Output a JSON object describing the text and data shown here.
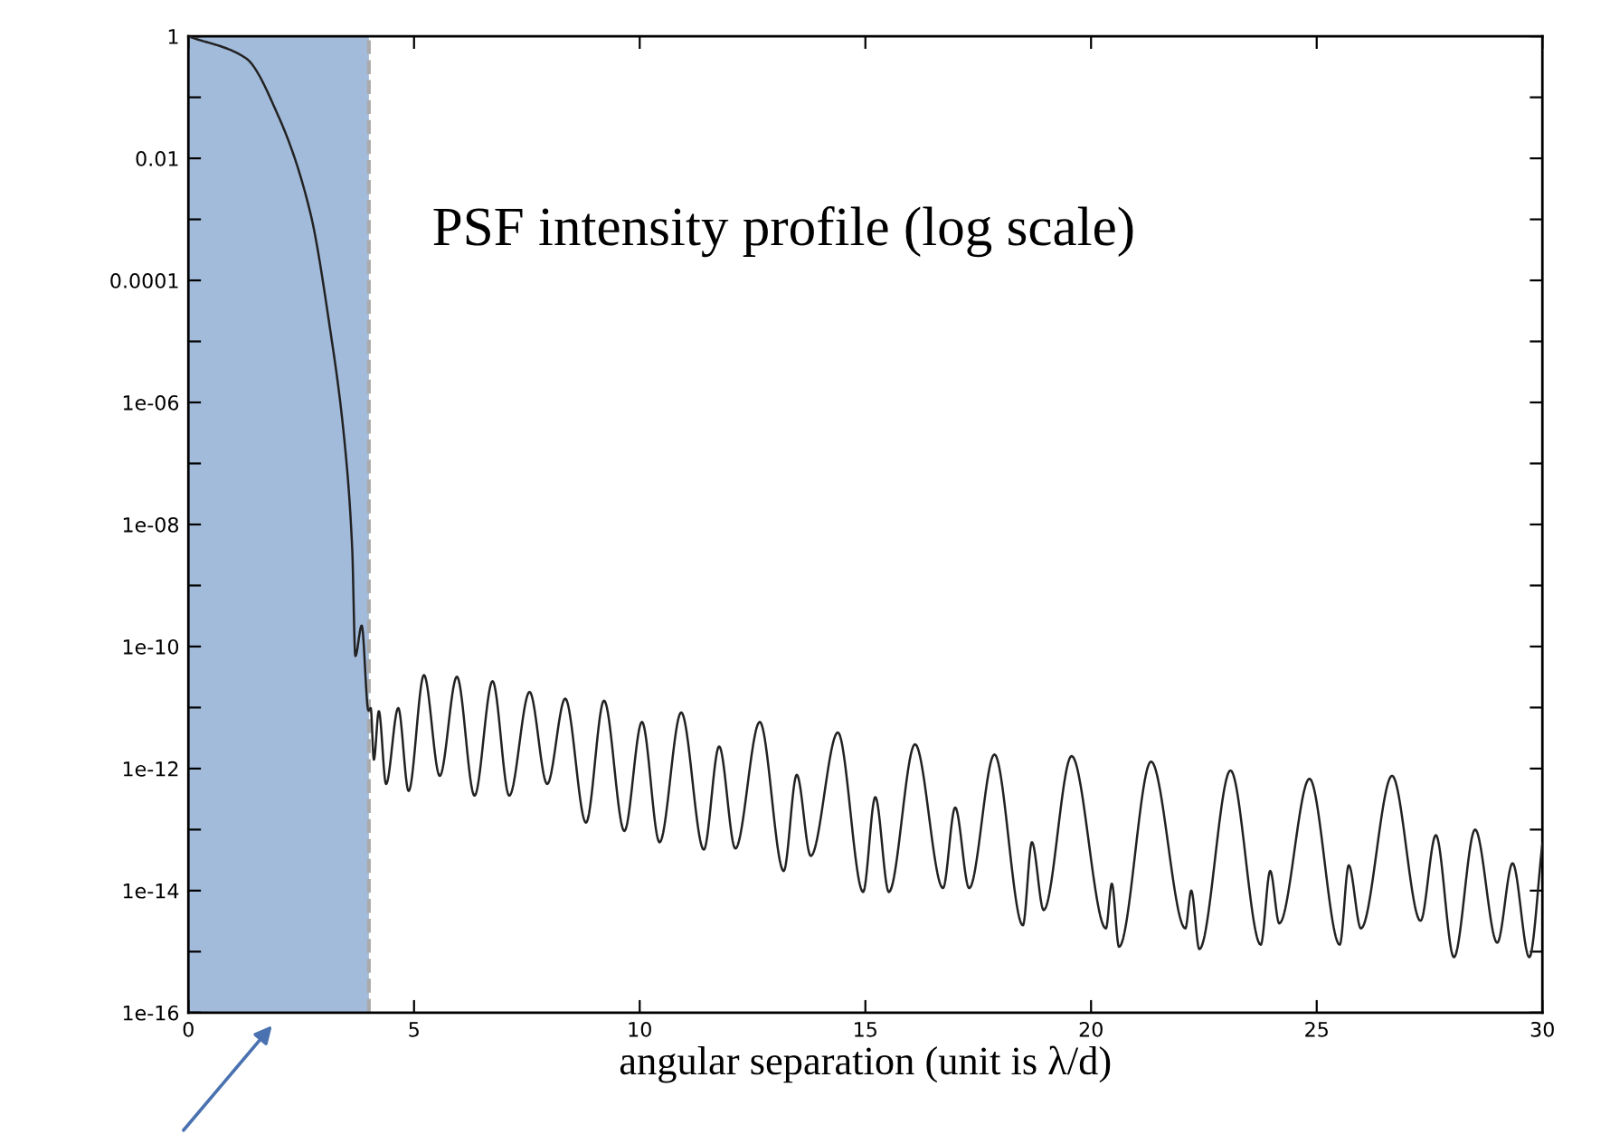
{
  "chart_data": {
    "type": "line",
    "title": "PSF intensity profile (log scale)",
    "xlabel": "angular separation (unit is λ/d)",
    "log": "y",
    "grid": false,
    "legend": false,
    "marker": "none",
    "line_style": "solid",
    "xlim": [
      0,
      30
    ],
    "xticks": [
      0,
      5,
      10,
      15,
      20,
      25,
      30
    ],
    "ylim": [
      1e-16,
      1
    ],
    "yticks": [
      {
        "value": 1,
        "label": "1"
      },
      {
        "value": 0.1,
        "label": null
      },
      {
        "value": 0.01,
        "label": "0.01"
      },
      {
        "value": 0.001,
        "label": null
      },
      {
        "value": 0.0001,
        "label": "0.0001"
      },
      {
        "value": 1e-05,
        "label": null
      },
      {
        "value": 1e-06,
        "label": "1e-06"
      },
      {
        "value": 1e-07,
        "label": null
      },
      {
        "value": 1e-08,
        "label": "1e-08"
      },
      {
        "value": 1e-09,
        "label": null
      },
      {
        "value": 1e-10,
        "label": "1e-10"
      },
      {
        "value": 1e-11,
        "label": null
      },
      {
        "value": 1e-12,
        "label": "1e-12"
      },
      {
        "value": 1e-13,
        "label": null
      },
      {
        "value": 1e-14,
        "label": "1e-14"
      },
      {
        "value": 1e-15,
        "label": null
      },
      {
        "value": 1e-16,
        "label": "1e-16"
      }
    ],
    "bands": [
      {
        "axis": "x",
        "from": 0,
        "to": 4,
        "color": "#a3bbdb"
      }
    ],
    "ref_lines": [
      {
        "axis": "x",
        "value": 4,
        "color": "#aaaaaa",
        "line_style": "dashed"
      }
    ],
    "series": [
      {
        "color": "#222222",
        "x": [
          0,
          1.27,
          1.99,
          2.7,
          3.12,
          3.48,
          3.63,
          3.7,
          3.84,
          3.99,
          4.04,
          4.11,
          4.22,
          4.38,
          4.65,
          4.88,
          5.22,
          5.57,
          5.95,
          6.34,
          6.74,
          7.11,
          7.56,
          7.95,
          8.35,
          8.81,
          9.21,
          9.66,
          10.05,
          10.44,
          10.92,
          11.42,
          11.76,
          12.12,
          12.66,
          13.19,
          13.48,
          13.79,
          14.39,
          14.95,
          15.22,
          15.52,
          16.1,
          16.72,
          16.99,
          17.3,
          17.86,
          18.49,
          18.69,
          18.95,
          19.57,
          20.33,
          20.46,
          20.62,
          21.33,
          22.09,
          22.22,
          22.4,
          23.09,
          23.76,
          23.97,
          24.17,
          24.84,
          25.51,
          25.71,
          25.98,
          26.67,
          27.3,
          27.64,
          28.04,
          28.51,
          29.0,
          29.34,
          29.71,
          30
        ],
        "values": [
          1,
          0.44,
          0.05,
          0.0013,
          2e-05,
          1.6e-07,
          4e-09,
          7e-11,
          2.2e-10,
          8.9e-12,
          9.8e-12,
          1.4e-12,
          8.7e-12,
          5.6e-13,
          9.8e-12,
          4.3e-13,
          3.4e-11,
          7.6e-13,
          3.2e-11,
          3.6e-13,
          2.7e-11,
          3.6e-13,
          1.8e-11,
          5.6e-13,
          1.4e-11,
          1.3e-13,
          1.3e-11,
          9.5e-14,
          5.8e-12,
          6.2e-14,
          8.3e-12,
          4.7e-14,
          2.3e-12,
          4.9e-14,
          5.8e-12,
          2.1e-14,
          7.9e-13,
          3.7e-14,
          3.9e-12,
          9.5e-15,
          3.4e-13,
          9.5e-15,
          2.5e-12,
          1.1e-14,
          2.3e-13,
          1.1e-14,
          1.7e-12,
          2.7e-15,
          6.2e-14,
          4.8e-15,
          1.6e-12,
          2.4e-15,
          1.3e-14,
          1.2e-15,
          1.3e-12,
          2.4e-15,
          1e-14,
          1.1e-15,
          9.3e-13,
          1.3e-15,
          2.1e-14,
          2.9e-15,
          6.8e-13,
          1.3e-15,
          2.6e-14,
          2.4e-15,
          7.6e-13,
          3.2e-15,
          8.1e-14,
          8.1e-16,
          1e-13,
          1.4e-15,
          2.8e-14,
          8.1e-16,
          5.9e-14
        ]
      }
    ]
  }
}
